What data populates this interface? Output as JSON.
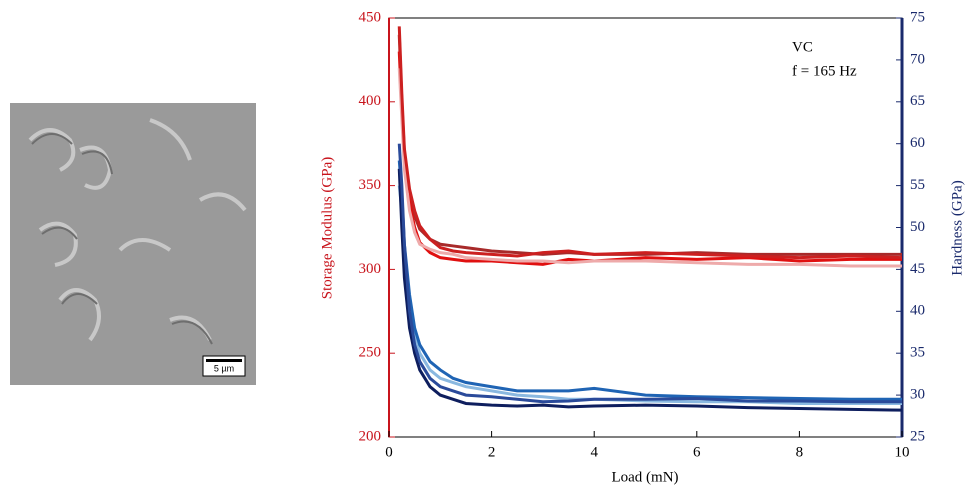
{
  "image_caption": {
    "scale_bar": "5 µm"
  },
  "chart_data": {
    "type": "line",
    "xlabel": "Load (mN)",
    "ylabel": "Storage Modulus  (GPa)",
    "y2label": "Hardness  (GPa)",
    "annotations": [
      "VC",
      "f = 165 Hz"
    ],
    "xlim": [
      0,
      10
    ],
    "xticks": [
      0,
      2,
      4,
      6,
      8,
      10
    ],
    "ylim": [
      200,
      450
    ],
    "yticks": [
      200,
      250,
      300,
      350,
      400,
      450
    ],
    "ycolor": "#c8141c",
    "y2lim": [
      25,
      75
    ],
    "y2ticks": [
      25,
      30,
      35,
      40,
      45,
      50,
      55,
      60,
      65,
      70,
      75
    ],
    "y2color": "#1a2a6c",
    "x": [
      0.2,
      0.25,
      0.3,
      0.4,
      0.5,
      0.6,
      0.8,
      1,
      1.25,
      1.5,
      2,
      2.5,
      3,
      3.5,
      4,
      5,
      6,
      7,
      8,
      9,
      10
    ],
    "series": [
      {
        "color": "#a82a2a",
        "values": [
          440,
          400,
          370,
          345,
          332,
          324,
          318,
          315,
          314,
          313,
          311,
          310,
          309,
          310,
          309,
          309,
          310,
          309,
          309,
          309,
          309
        ]
      },
      {
        "color": "#e01010",
        "values": [
          430,
          395,
          365,
          340,
          325,
          316,
          310,
          307,
          306,
          305,
          305,
          304,
          303,
          306,
          305,
          307,
          306,
          307,
          305,
          306,
          306
        ]
      },
      {
        "color": "#eeaaaa",
        "values": [
          420,
          390,
          360,
          335,
          322,
          315,
          312,
          310,
          309,
          307,
          306,
          305,
          305,
          304,
          305,
          305,
          304,
          303,
          303,
          302,
          302
        ]
      },
      {
        "color": "#cc2020",
        "values": [
          445,
          405,
          372,
          348,
          335,
          326,
          318,
          313,
          311,
          310,
          309,
          308,
          310,
          311,
          309,
          310,
          309,
          308,
          307,
          308,
          307
        ]
      },
      {
        "color": "#8ab8e0",
        "axis": "y2",
        "values": [
          55,
          52,
          47,
          41,
          37,
          35,
          33,
          32,
          31.5,
          31,
          30.5,
          30,
          29.8,
          29.5,
          29.5,
          29.3,
          29.2,
          29.2,
          29,
          29,
          29
        ]
      },
      {
        "color": "#1f64b4",
        "axis": "y2",
        "values": [
          58,
          54,
          48,
          42,
          38,
          36,
          34,
          33,
          32,
          31.5,
          31,
          30.5,
          30.5,
          30.5,
          30.8,
          30,
          29.8,
          29.7,
          29.6,
          29.5,
          29.5
        ]
      },
      {
        "color": "#0e1e5e",
        "axis": "y2",
        "values": [
          57,
          50,
          44,
          38,
          35,
          33,
          31,
          30,
          29.5,
          29,
          28.8,
          28.7,
          28.8,
          28.6,
          28.7,
          28.8,
          28.7,
          28.5,
          28.4,
          28.3,
          28.2
        ]
      },
      {
        "color": "#2a4a9a",
        "axis": "y2",
        "values": [
          60,
          55,
          48,
          40,
          36,
          34,
          32,
          31,
          30.5,
          30,
          29.8,
          29.5,
          29.2,
          29.3,
          29.5,
          29.5,
          29.6,
          29.3,
          29.3,
          29.2,
          29.2
        ]
      }
    ]
  }
}
